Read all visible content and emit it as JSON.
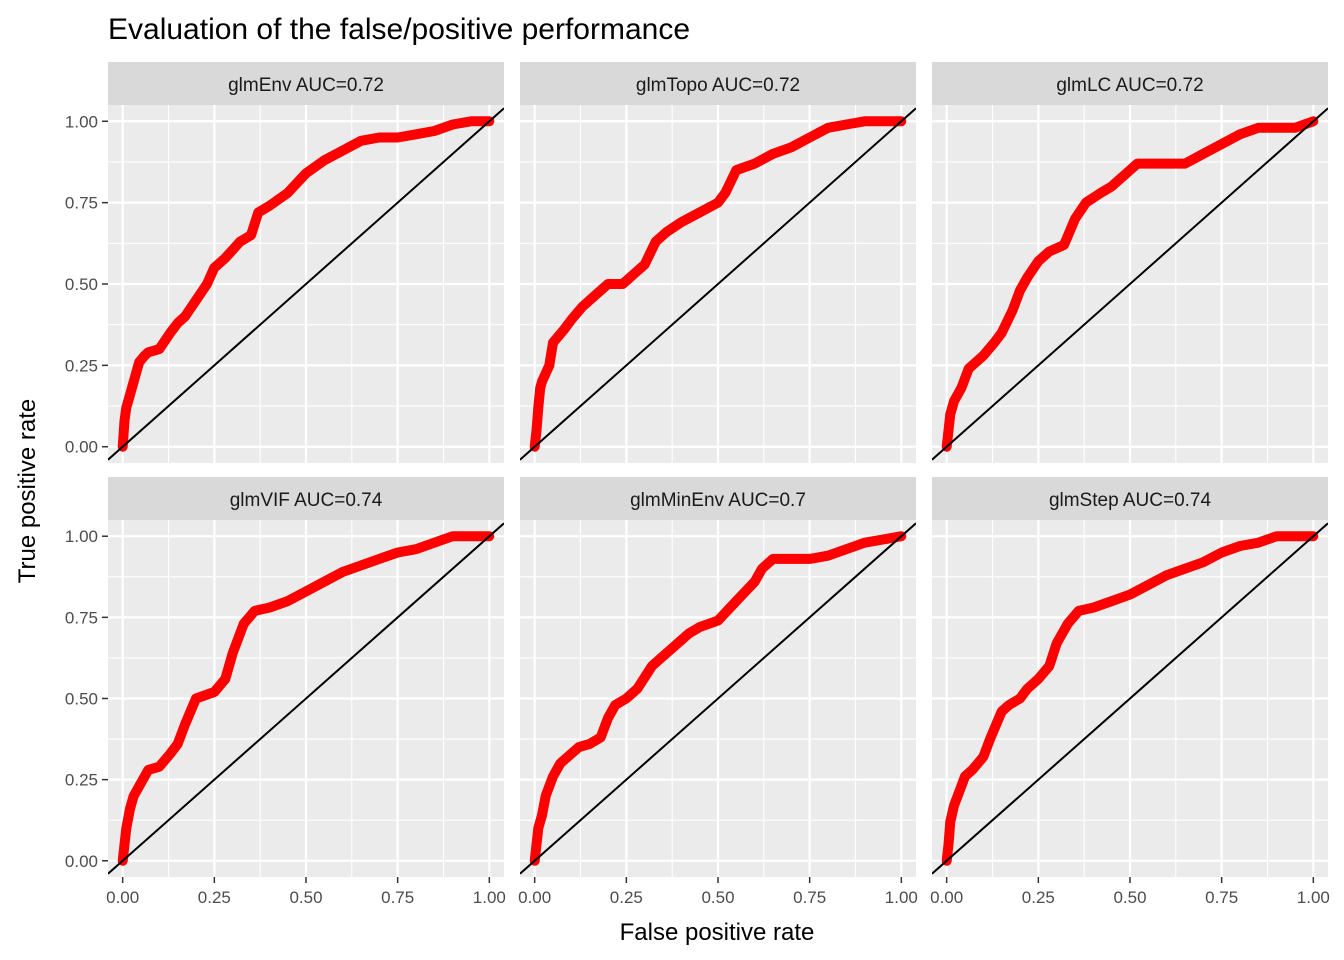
{
  "chart_data": {
    "type": "line",
    "title": "Evaluation of the false/positive performance",
    "xlabel": "False positive rate",
    "ylabel": "True positive rate",
    "xlim": [
      -0.04,
      1.04
    ],
    "ylim": [
      -0.05,
      1.05
    ],
    "x_ticks": [
      "0.00",
      "0.25",
      "0.50",
      "0.75",
      "1.00"
    ],
    "y_ticks": [
      "0.00",
      "0.25",
      "0.50",
      "0.75",
      "1.00"
    ],
    "grid": true,
    "layout": "facets-2x3",
    "series_color": "#ff0000",
    "reference_line_color": "#000000",
    "reference_line": "y = x",
    "panels": [
      {
        "label": "glmEnv AUC=0.72",
        "x": [
          0,
          0.005,
          0.01,
          0.02,
          0.03,
          0.045,
          0.06,
          0.07,
          0.1,
          0.13,
          0.15,
          0.17,
          0.2,
          0.23,
          0.25,
          0.28,
          0.32,
          0.35,
          0.37,
          0.4,
          0.45,
          0.5,
          0.55,
          0.6,
          0.65,
          0.7,
          0.75,
          0.8,
          0.85,
          0.9,
          0.95,
          1.0
        ],
        "y": [
          0,
          0.08,
          0.12,
          0.16,
          0.2,
          0.26,
          0.28,
          0.29,
          0.3,
          0.35,
          0.38,
          0.4,
          0.45,
          0.5,
          0.55,
          0.58,
          0.63,
          0.65,
          0.72,
          0.74,
          0.78,
          0.84,
          0.88,
          0.91,
          0.94,
          0.95,
          0.95,
          0.96,
          0.97,
          0.99,
          1.0,
          1.0
        ]
      },
      {
        "label": "glmTopo AUC=0.72",
        "x": [
          0,
          0.005,
          0.01,
          0.015,
          0.02,
          0.04,
          0.05,
          0.08,
          0.1,
          0.13,
          0.16,
          0.2,
          0.24,
          0.27,
          0.3,
          0.33,
          0.36,
          0.4,
          0.45,
          0.5,
          0.52,
          0.55,
          0.6,
          0.65,
          0.7,
          0.75,
          0.8,
          0.85,
          0.9,
          0.95,
          1.0
        ],
        "y": [
          0,
          0.05,
          0.12,
          0.18,
          0.2,
          0.25,
          0.32,
          0.36,
          0.39,
          0.43,
          0.46,
          0.5,
          0.5,
          0.53,
          0.56,
          0.63,
          0.66,
          0.69,
          0.72,
          0.75,
          0.78,
          0.85,
          0.87,
          0.9,
          0.92,
          0.95,
          0.98,
          0.99,
          1.0,
          1.0,
          1.0
        ]
      },
      {
        "label": "glmLC AUC=0.72",
        "x": [
          0,
          0.005,
          0.01,
          0.02,
          0.04,
          0.06,
          0.1,
          0.13,
          0.15,
          0.18,
          0.2,
          0.22,
          0.25,
          0.28,
          0.32,
          0.35,
          0.38,
          0.42,
          0.45,
          0.5,
          0.52,
          0.55,
          0.6,
          0.65,
          0.7,
          0.75,
          0.8,
          0.85,
          0.9,
          0.95,
          1.0
        ],
        "y": [
          0,
          0.05,
          0.1,
          0.14,
          0.18,
          0.24,
          0.28,
          0.32,
          0.35,
          0.42,
          0.48,
          0.52,
          0.57,
          0.6,
          0.62,
          0.7,
          0.75,
          0.78,
          0.8,
          0.85,
          0.87,
          0.87,
          0.87,
          0.87,
          0.9,
          0.93,
          0.96,
          0.98,
          0.98,
          0.98,
          1.0
        ]
      },
      {
        "label": "glmVIF AUC=0.74",
        "x": [
          0,
          0.005,
          0.01,
          0.02,
          0.03,
          0.05,
          0.07,
          0.1,
          0.13,
          0.15,
          0.17,
          0.2,
          0.25,
          0.28,
          0.3,
          0.33,
          0.36,
          0.4,
          0.45,
          0.5,
          0.55,
          0.6,
          0.65,
          0.7,
          0.75,
          0.8,
          0.85,
          0.9,
          0.95,
          1.0
        ],
        "y": [
          0,
          0.05,
          0.1,
          0.16,
          0.2,
          0.24,
          0.28,
          0.29,
          0.33,
          0.36,
          0.42,
          0.5,
          0.52,
          0.56,
          0.64,
          0.73,
          0.77,
          0.78,
          0.8,
          0.83,
          0.86,
          0.89,
          0.91,
          0.93,
          0.95,
          0.96,
          0.98,
          1.0,
          1.0,
          1.0
        ]
      },
      {
        "label": "glmMinEnv AUC=0.7",
        "x": [
          0,
          0.005,
          0.01,
          0.02,
          0.03,
          0.05,
          0.07,
          0.1,
          0.12,
          0.15,
          0.18,
          0.2,
          0.22,
          0.25,
          0.28,
          0.32,
          0.35,
          0.38,
          0.42,
          0.45,
          0.5,
          0.55,
          0.6,
          0.62,
          0.65,
          0.7,
          0.75,
          0.8,
          0.85,
          0.9,
          0.95,
          1.0
        ],
        "y": [
          0,
          0.05,
          0.1,
          0.14,
          0.2,
          0.26,
          0.3,
          0.33,
          0.35,
          0.36,
          0.38,
          0.44,
          0.48,
          0.5,
          0.53,
          0.6,
          0.63,
          0.66,
          0.7,
          0.72,
          0.74,
          0.8,
          0.86,
          0.9,
          0.93,
          0.93,
          0.93,
          0.94,
          0.96,
          0.98,
          0.99,
          1.0
        ]
      },
      {
        "label": "glmStep AUC=0.74",
        "x": [
          0,
          0.005,
          0.01,
          0.02,
          0.03,
          0.05,
          0.07,
          0.1,
          0.12,
          0.15,
          0.17,
          0.2,
          0.22,
          0.25,
          0.28,
          0.3,
          0.33,
          0.36,
          0.4,
          0.45,
          0.5,
          0.55,
          0.6,
          0.65,
          0.7,
          0.75,
          0.8,
          0.85,
          0.9,
          0.95,
          1.0
        ],
        "y": [
          0,
          0.05,
          0.12,
          0.17,
          0.2,
          0.26,
          0.28,
          0.32,
          0.38,
          0.46,
          0.48,
          0.5,
          0.53,
          0.56,
          0.6,
          0.67,
          0.73,
          0.77,
          0.78,
          0.8,
          0.82,
          0.85,
          0.88,
          0.9,
          0.92,
          0.95,
          0.97,
          0.98,
          1.0,
          1.0,
          1.0
        ]
      }
    ]
  }
}
